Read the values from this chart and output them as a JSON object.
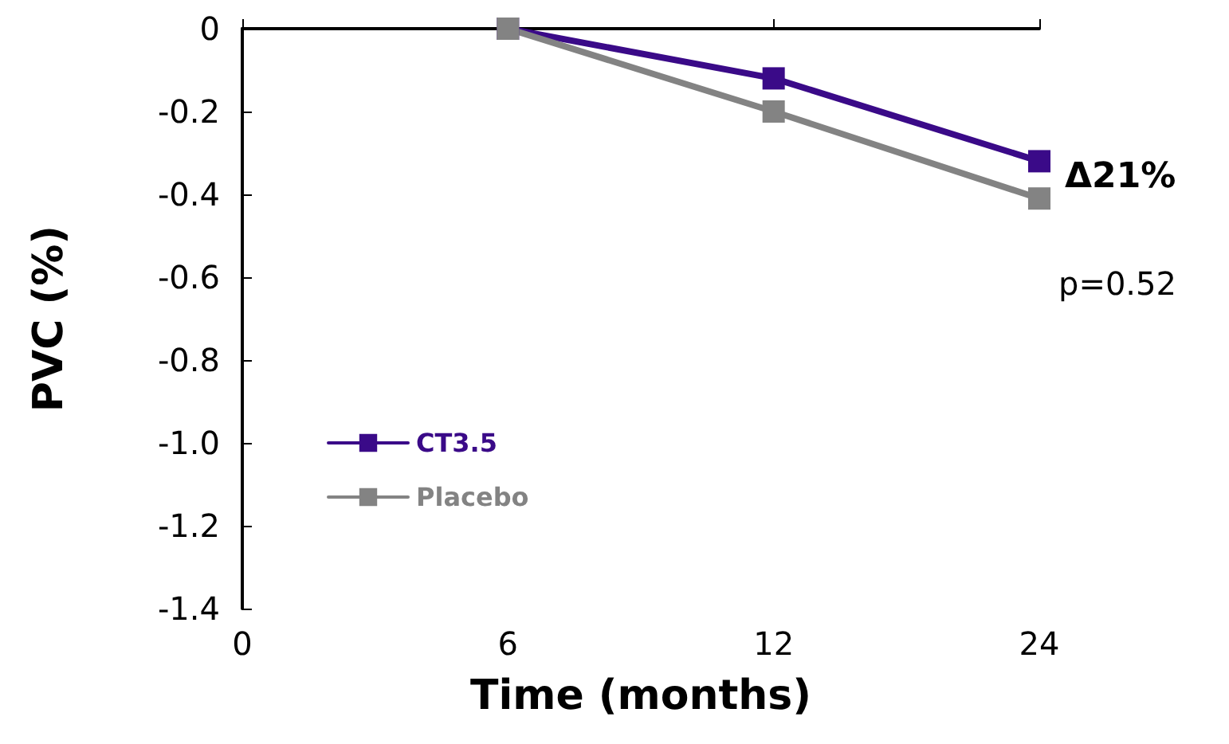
{
  "chart_data": {
    "type": "line",
    "xlabel": "Time (months)",
    "ylabel": "PVC (%)",
    "categories": [
      "0",
      "6",
      "12",
      "24"
    ],
    "series": [
      {
        "name": "CT3.5",
        "color": "#3a0a88",
        "values": [
          null,
          0,
          -0.12,
          -0.32
        ]
      },
      {
        "name": "Placebo",
        "color": "#838383",
        "values": [
          null,
          0,
          -0.2,
          -0.41
        ]
      }
    ],
    "ylim": [
      -1.4,
      0
    ],
    "yticks": [
      {
        "value": -1.4,
        "label": "-1.4"
      },
      {
        "value": -1.2,
        "label": "-1.2"
      },
      {
        "value": -1,
        "label": "-1.0"
      },
      -0.8,
      -0.6,
      -0.4,
      -0.2,
      0
    ],
    "annotations": [
      "Δ21%",
      "p=0.52"
    ],
    "legend": "left",
    "marker": "square",
    "line_style": "solid",
    "grid": false
  }
}
